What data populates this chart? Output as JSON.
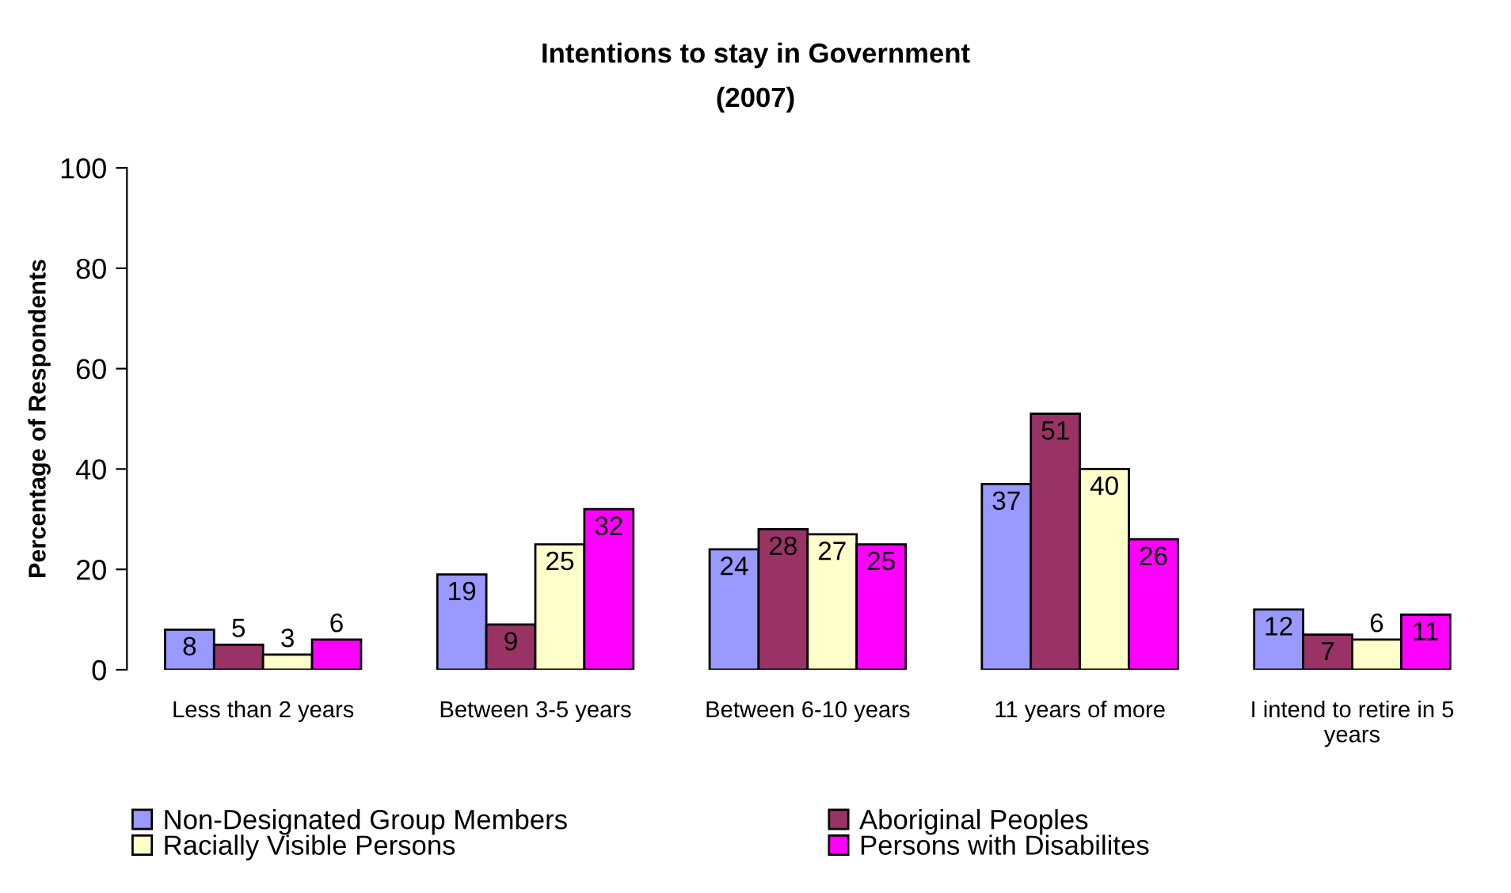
{
  "chart_data": {
    "type": "bar",
    "title": "Intentions to stay in Government",
    "subtitle": "(2007)",
    "ylabel": "Percentage of Respondents",
    "categories": [
      "Less than 2 years",
      "Between 3-5 years",
      "Between 6-10 years",
      "11 years of more",
      "I intend to retire in 5\nyears"
    ],
    "series": [
      {
        "name": "Non-Designated Group Members",
        "color": "#9999ff",
        "values": [
          8,
          19,
          24,
          37,
          12
        ]
      },
      {
        "name": "Aboriginal Peoples",
        "color": "#993366",
        "values": [
          5,
          9,
          28,
          51,
          7
        ]
      },
      {
        "name": "Racially Visible Persons",
        "color": "#ffffcc",
        "values": [
          3,
          25,
          27,
          40,
          6
        ]
      },
      {
        "name": "Persons with Disabilites",
        "color": "#ff00ff",
        "values": [
          6,
          32,
          25,
          26,
          11
        ]
      }
    ],
    "ylim": [
      0,
      100
    ],
    "yticks": [
      0,
      20,
      40,
      60,
      80,
      100
    ],
    "data_labels": true,
    "legend": "bottom",
    "grid": false
  }
}
